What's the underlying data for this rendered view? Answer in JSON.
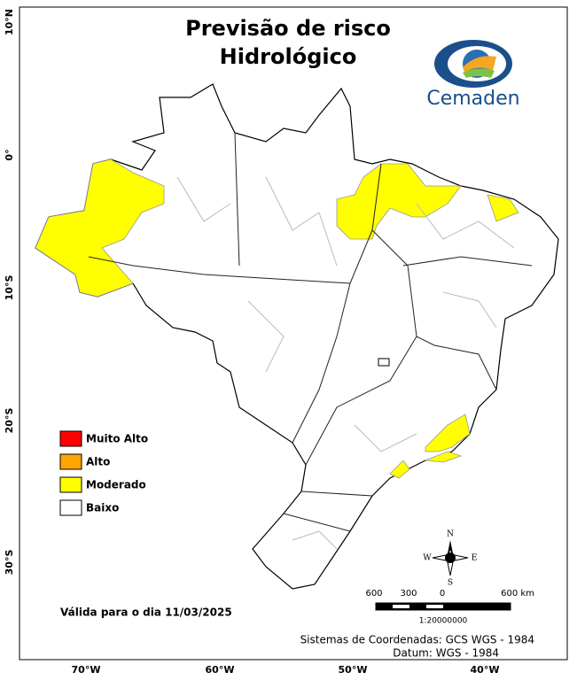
{
  "header": {
    "title_line1": "Previsão de risco",
    "title_line2": "Hidrológico",
    "logo_text": "Cemaden"
  },
  "axes": {
    "lat_labels": [
      "10°N",
      "0°",
      "10°S",
      "20°S",
      "30°S"
    ],
    "lon_labels": [
      "70°W",
      "60°W",
      "50°W",
      "40°W"
    ]
  },
  "legend": [
    {
      "label": "Muito Alto",
      "color": "#ff0000"
    },
    {
      "label": "Alto",
      "color": "#ffa500"
    },
    {
      "label": "Moderado",
      "color": "#ffff00"
    },
    {
      "label": "Baixo",
      "color": "#ffffff"
    }
  ],
  "validity": "Válida para o dia 11/03/2025",
  "scale_bar": {
    "labels": [
      "600",
      "300",
      "0",
      "600 km"
    ],
    "ratio": "1:20000000"
  },
  "compass": {
    "north": "N",
    "south": "S",
    "east": "E",
    "west": "W"
  },
  "footer": {
    "coordinate_system": "Sistemas de Coordenadas: GCS WGS - 1984",
    "datum": "Datum: WGS - 1984"
  }
}
